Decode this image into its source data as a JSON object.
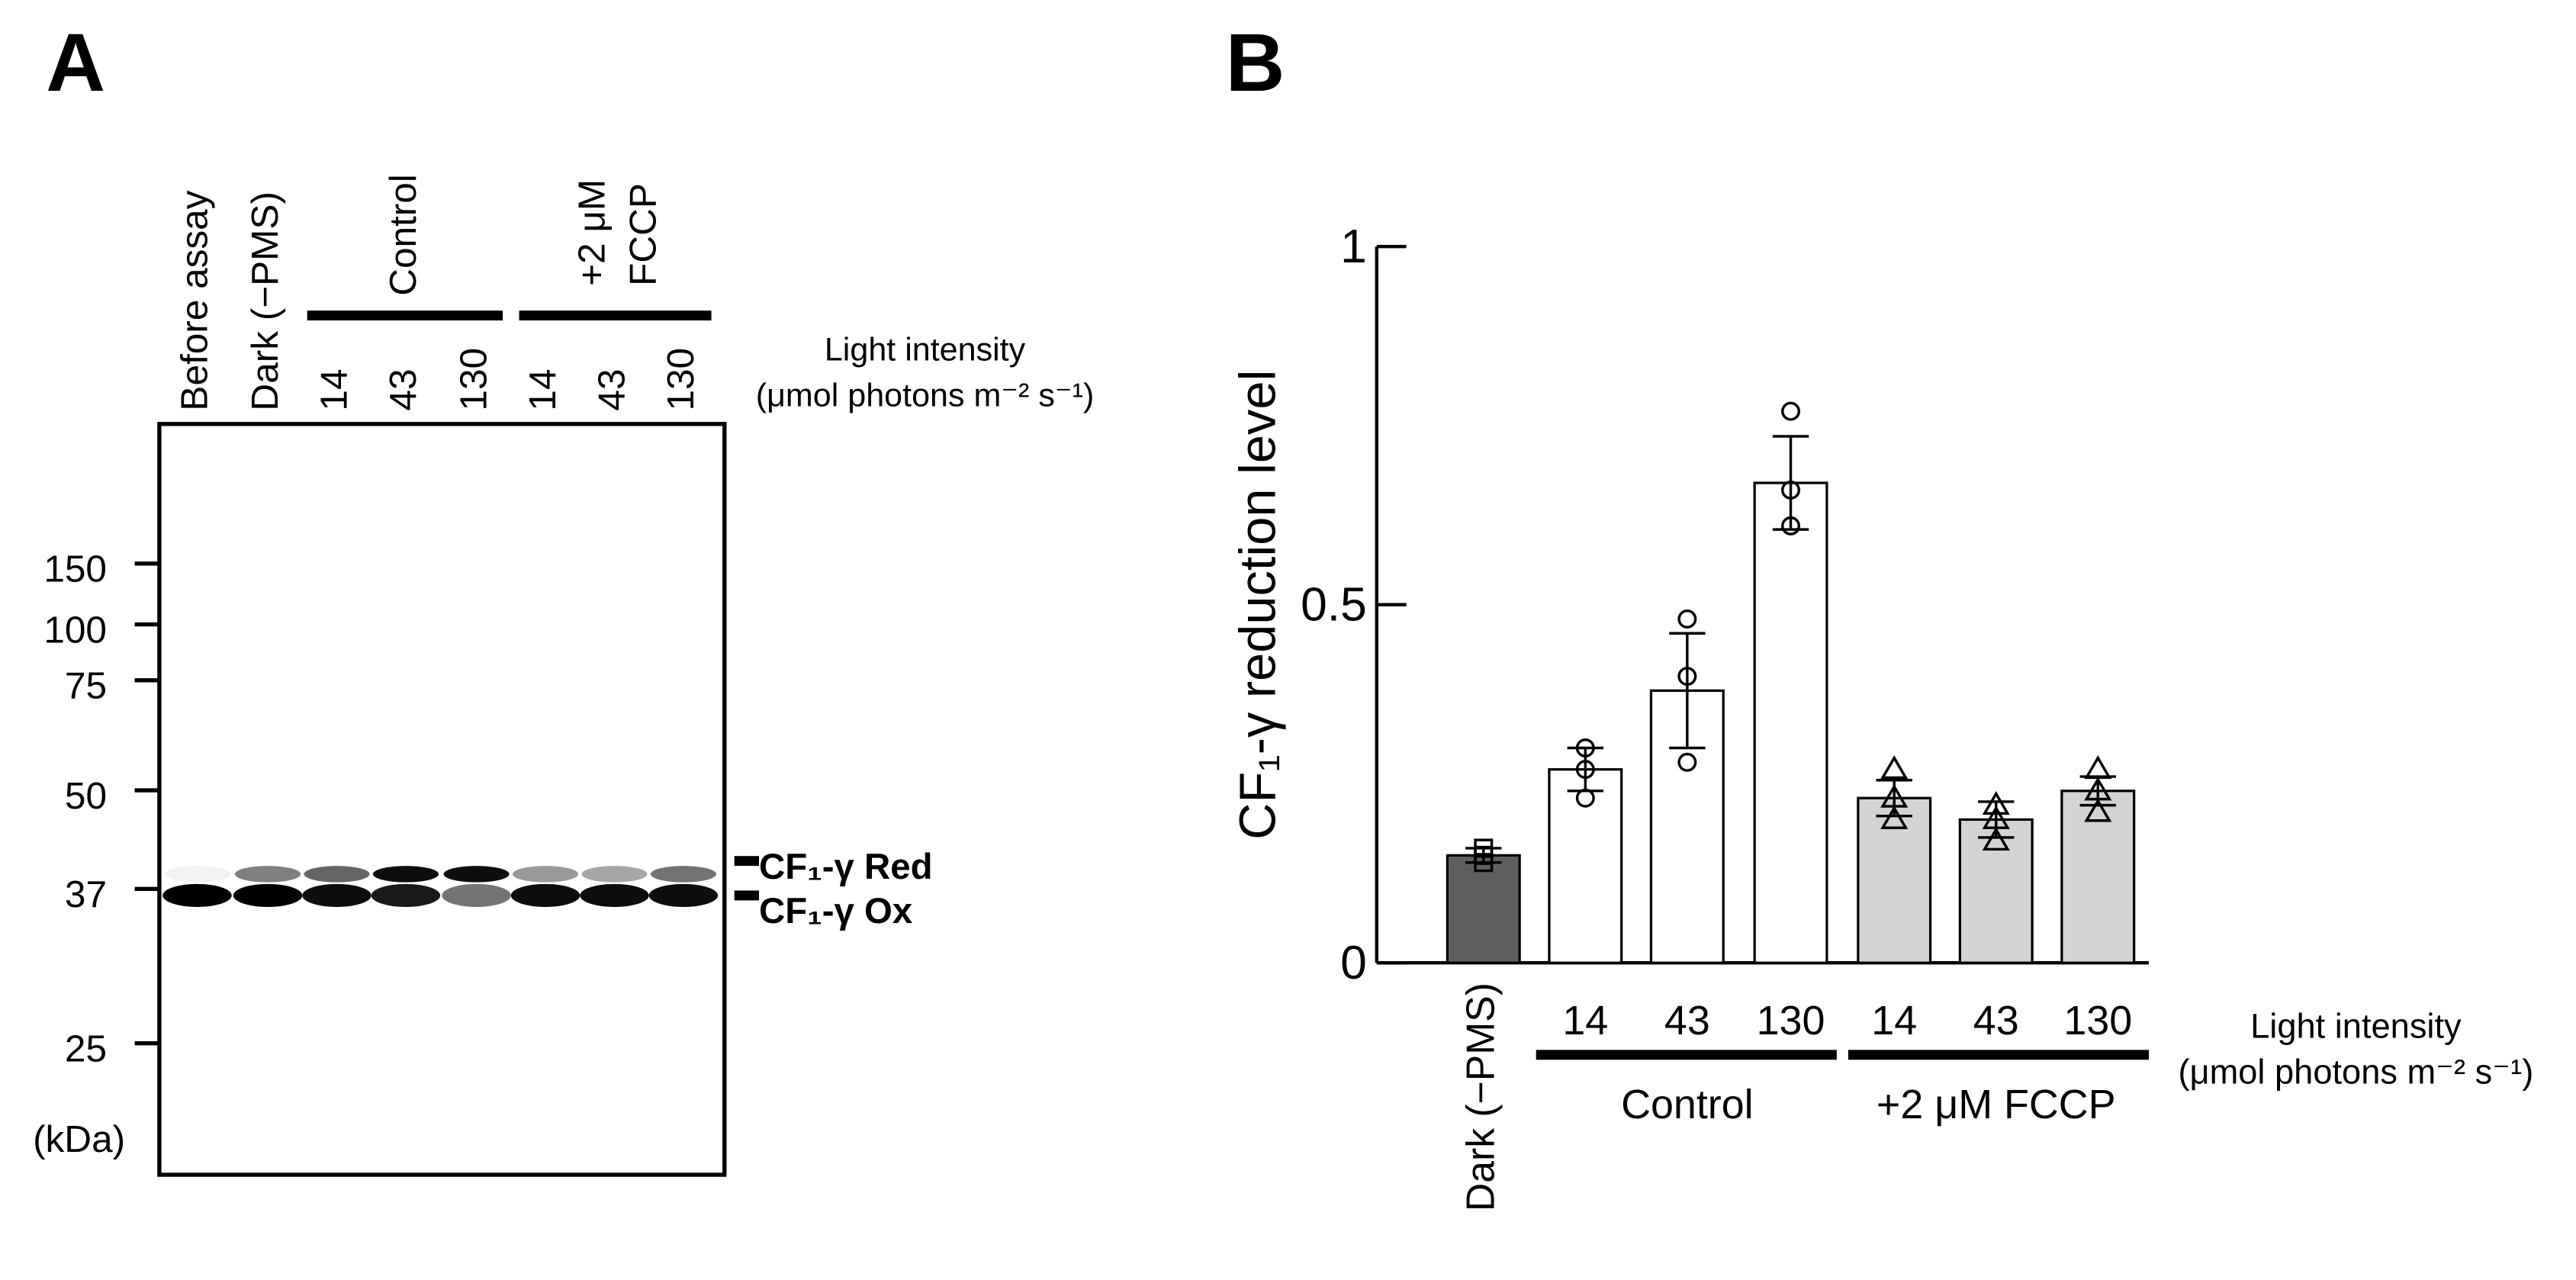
{
  "panel_a": {
    "label": "A",
    "lanes": [
      "Before assay",
      "Dark (−PMS)",
      "14",
      "43",
      "130",
      "14",
      "43",
      "130"
    ],
    "group_labels": [
      "Control",
      [
        "+2 μM",
        "FCCP"
      ]
    ],
    "light_intensity": [
      "Light intensity",
      "(μmol photons m⁻² s⁻¹)"
    ],
    "mw_markers": [
      "150",
      "100",
      "75",
      "50",
      "37",
      "25"
    ],
    "mw_unit": "(kDa)",
    "band_labels": [
      "CF₁-γ Red",
      "CF₁-γ Ox"
    ]
  },
  "chart_data": {
    "type": "bar",
    "panel_label": "B",
    "y_label": "CF₁-γ reduction level",
    "categories": [
      "Dark (−PMS)",
      "14",
      "43",
      "130",
      "14",
      "43",
      "130"
    ],
    "group_labels": [
      "Control",
      "+2 μM FCCP"
    ],
    "x_label": [
      "Light intensity",
      "(μmol photons m⁻² s⁻¹)"
    ],
    "values": [
      0.15,
      0.27,
      0.38,
      0.67,
      0.23,
      0.2,
      0.24
    ],
    "errors": [
      0.01,
      0.03,
      0.08,
      0.065,
      0.025,
      0.025,
      0.02
    ],
    "points": [
      [
        0.16,
        0.15,
        0.14
      ],
      [
        0.3,
        0.27,
        0.23
      ],
      [
        0.48,
        0.4,
        0.28
      ],
      [
        0.77,
        0.66,
        0.61
      ],
      [
        0.27,
        0.23,
        0.2
      ],
      [
        0.22,
        0.2,
        0.17
      ],
      [
        0.27,
        0.24,
        0.21
      ]
    ],
    "colors": [
      "#5f5f5f",
      "#ffffff",
      "#ffffff",
      "#ffffff",
      "#d3d3d3",
      "#d3d3d3",
      "#d3d3d3"
    ],
    "markers": [
      "square",
      "circle",
      "circle",
      "circle",
      "triangle",
      "triangle",
      "triangle"
    ],
    "ylim": [
      0,
      1
    ],
    "yticks": [
      0,
      0.5,
      1
    ]
  }
}
